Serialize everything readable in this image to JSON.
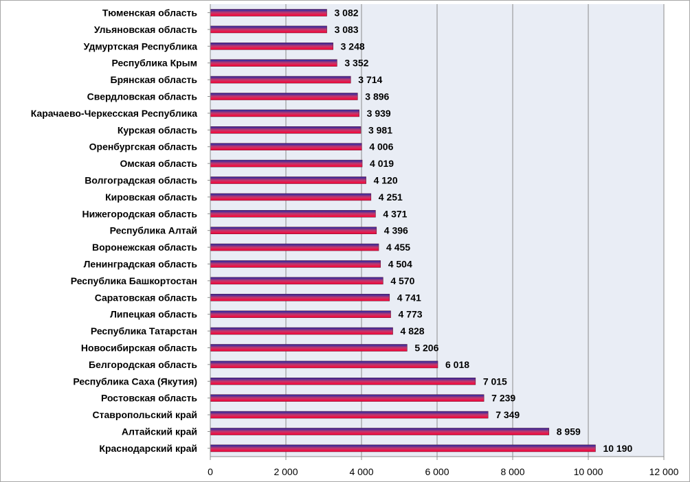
{
  "chart_data": {
    "type": "bar",
    "orientation": "horizontal",
    "title": "",
    "xlabel": "",
    "ylabel": "",
    "xlim": [
      0,
      12000
    ],
    "x_ticks": [
      0,
      2000,
      4000,
      6000,
      8000,
      10000,
      12000
    ],
    "x_tick_labels": [
      "0",
      "2 000",
      "4 000",
      "6 000",
      "8 000",
      "10 000",
      "12 000"
    ],
    "grid": "vertical",
    "legend": "none",
    "colors": {
      "bar_top": "#1f2aa8",
      "bar_mid": "#c0396e",
      "bar_bottom": "#ff0033",
      "plot_background": "#e9edf5",
      "grid": "#8c8c8c"
    },
    "categories": [
      "Тюменская область",
      "Ульяновская область",
      "Удмуртская Республика",
      "Республика Крым",
      "Брянская область",
      "Свердловская область",
      "Карачаево-Черкесская Республика",
      "Курская область",
      "Оренбургская область",
      "Омская область",
      "Волгоградская область",
      "Кировская область",
      "Нижегородская область",
      "Республика Алтай",
      "Воронежская область",
      "Ленинградская область",
      "Республика Башкортостан",
      "Саратовская область",
      "Липецкая область",
      "Республика Татарстан",
      "Новосибирская область",
      "Белгородская область",
      "Республика Саха (Якутия)",
      "Ростовская область",
      "Ставропольский край",
      "Алтайский край",
      "Краснодарский край"
    ],
    "values": [
      3082,
      3083,
      3248,
      3352,
      3714,
      3896,
      3939,
      3981,
      4006,
      4019,
      4120,
      4251,
      4371,
      4396,
      4455,
      4504,
      4570,
      4741,
      4773,
      4828,
      5206,
      6018,
      7015,
      7239,
      7349,
      8959,
      10190
    ],
    "value_labels": [
      "3 082",
      "3 083",
      "3 248",
      "3 352",
      "3 714",
      "3 896",
      "3 939",
      "3 981",
      "4 006",
      "4 019",
      "4 120",
      "4 251",
      "4 371",
      "4 396",
      "4 455",
      "4 504",
      "4 570",
      "4 741",
      "4 773",
      "4 828",
      "5 206",
      "6 018",
      "7 015",
      "7 239",
      "7 349",
      "8 959",
      "10 190"
    ]
  }
}
